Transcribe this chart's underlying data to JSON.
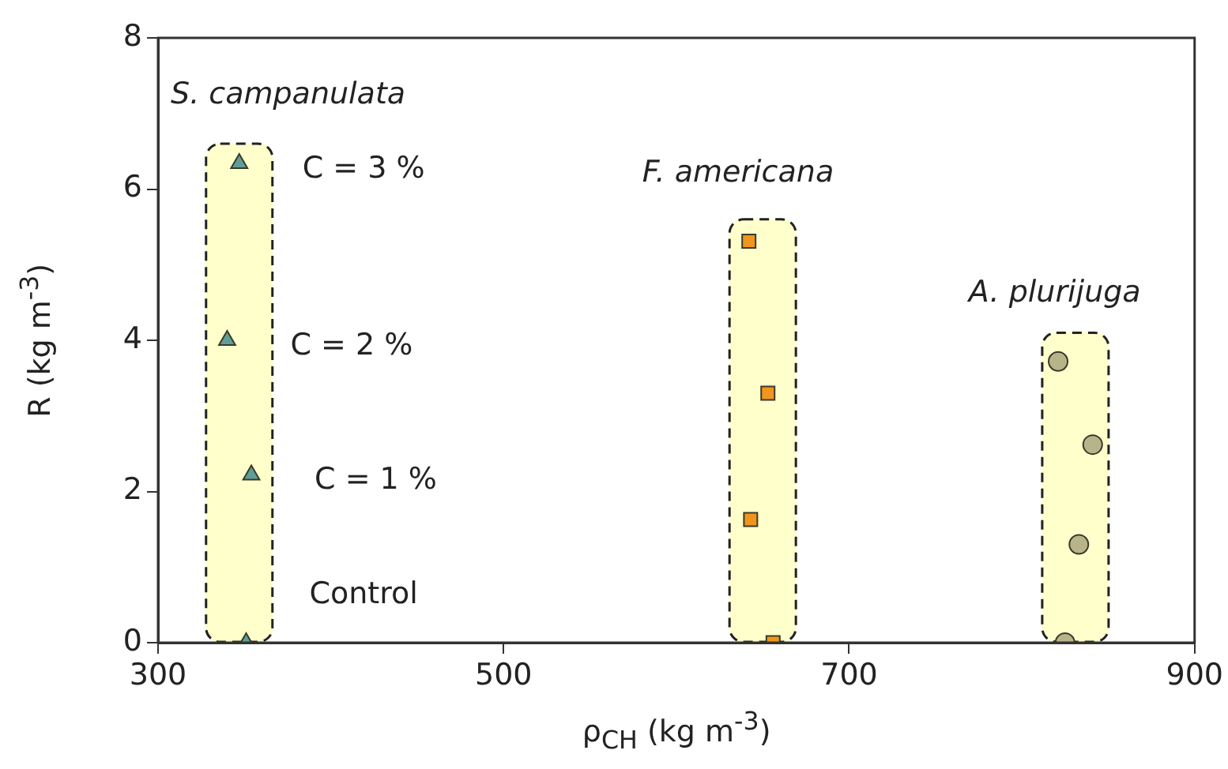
{
  "chart_data": {
    "type": "scatter",
    "xlabel": "ρ$_{CH}$  (kg m$^{-3}$)",
    "ylabel": "R  (kg m$^{-3}$)",
    "xlim": [
      300,
      900
    ],
    "xticks": [
      300,
      500,
      700,
      900
    ],
    "ylim": [
      0,
      8
    ],
    "yticks": [
      0,
      2,
      4,
      6,
      8
    ],
    "grid": false,
    "legend": false,
    "series": [
      {
        "type": "bar",
        "color": "#ffffcc",
        "x": [
          347,
          650,
          831
        ],
        "base": [
          0,
          0,
          0
        ],
        "values": [
          6.6,
          5.6,
          4.1
        ]
      },
      {
        "name": "S. campanulata",
        "color": "#5f9e96",
        "marker": "triangle",
        "x": [
          351,
          354,
          340,
          347
        ],
        "values": [
          0,
          2.22,
          4.0,
          6.34
        ]
      },
      {
        "name": "F. americana",
        "color": "#f0961e",
        "marker": "square",
        "x": [
          656,
          643,
          653,
          642
        ],
        "values": [
          0,
          1.63,
          3.3,
          5.31
        ]
      },
      {
        "name": "A. plurijuga",
        "color": "#b8b48a",
        "marker": "circle",
        "x": [
          825,
          833,
          841,
          821
        ],
        "values": [
          0,
          1.3,
          2.62,
          3.72
        ]
      }
    ],
    "annotations": [
      {
        "text": "C = 3 %",
        "x": 347,
        "y": 6.34
      },
      {
        "text": "C = 2 %",
        "x": 340,
        "y": 4.0
      },
      {
        "text": "C = 1 %",
        "x": 354,
        "y": 2.22
      },
      {
        "text": "Control",
        "x": 351,
        "y": 0
      }
    ]
  }
}
